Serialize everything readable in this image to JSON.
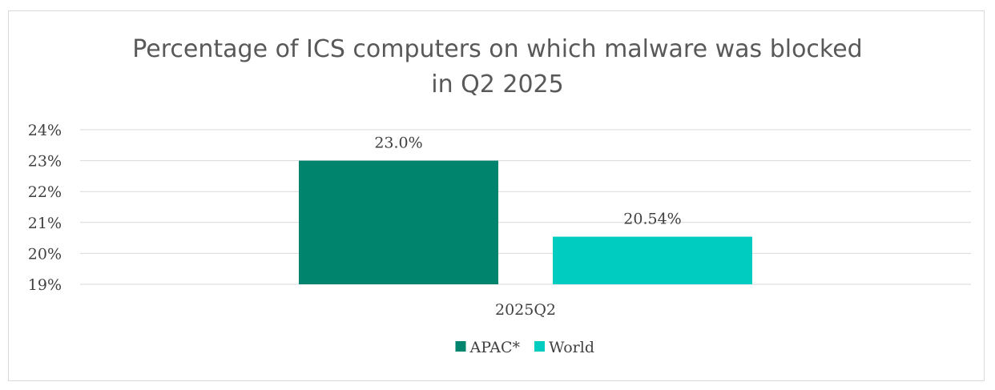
{
  "chart_data": {
    "type": "bar",
    "title_lines": [
      "Percentage of ICS computers on which malware was blocked",
      "in Q2 2025"
    ],
    "categories": [
      "2025Q2"
    ],
    "series": [
      {
        "name": "APAC*",
        "values": [
          23.0
        ],
        "label": "23.0%",
        "color": "#00846d"
      },
      {
        "name": "World",
        "values": [
          20.54
        ],
        "label": "20.54%",
        "color": "#00ccbf"
      }
    ],
    "ylim": [
      19,
      24
    ],
    "yticks": [
      "19%",
      "20%",
      "21%",
      "22%",
      "23%",
      "24%"
    ],
    "ytick_values": [
      19,
      20,
      21,
      22,
      23,
      24
    ],
    "grid": true,
    "legend": "bottom",
    "colors": {
      "gridline": "#d9d9d9",
      "text": "#404040",
      "title": "#595959"
    }
  }
}
